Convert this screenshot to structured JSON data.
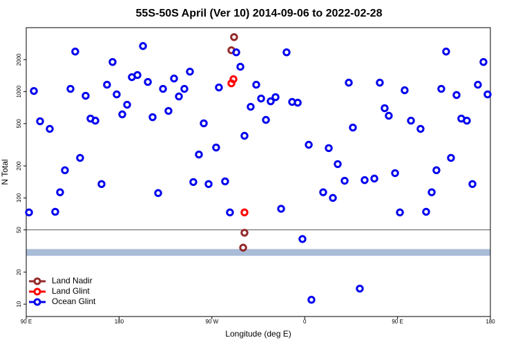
{
  "chart_data": {
    "type": "scatter",
    "title": "55S-50S April (Ver 10)   2014-09-06 to 2022-02-28",
    "xlabel": "Longitude (deg E)",
    "ylabel": "N Total",
    "log_y": true,
    "xlim": [
      90,
      540
    ],
    "xticks": [
      {
        "value": 90,
        "label": "90 E"
      },
      {
        "value": 180,
        "label": "180"
      },
      {
        "value": 270,
        "label": "90 W"
      },
      {
        "value": 360,
        "label": "0"
      },
      {
        "value": 450,
        "label": "90 E"
      },
      {
        "value": 540,
        "label": "180"
      }
    ],
    "ylim": [
      7.65,
      4000
    ],
    "yticks": [
      10,
      20,
      50,
      100,
      200,
      500,
      1000,
      2000
    ],
    "hline": 50,
    "band": [
      28.5,
      33
    ],
    "band_color": "#a9bcd8",
    "legend": "lower left",
    "series": [
      {
        "name": "Land Nadir",
        "color": "#932a2a",
        "x": [
          291.5,
          288.9,
          301.6,
          300.3
        ],
        "values": [
          3258,
          2453,
          47,
          34
        ]
      },
      {
        "name": "Land Glint",
        "color": "#ff0000",
        "x": [
          288.9,
          290.9,
          301.6
        ],
        "values": [
          1197,
          1309,
          73
        ]
      },
      {
        "name": "Ocean Glint",
        "color": "#0000ee",
        "x": [
          92.7,
          97.4,
          103.4,
          112.8,
          118.1,
          122.8,
          127.5,
          132.9,
          137.5,
          142.2,
          147.6,
          152.3,
          157,
          163,
          168.3,
          173.7,
          177.7,
          183.1,
          187.8,
          192.4,
          197.8,
          203.2,
          207.9,
          212.5,
          217.9,
          222.6,
          227.9,
          233.3,
          238,
          243.3,
          248.7,
          252,
          257.4,
          262.1,
          266.8,
          274.1,
          276.8,
          282.8,
          287.5,
          293.6,
          297.6,
          301.6,
          307.6,
          313,
          317.7,
          322.4,
          327,
          331.7,
          337.1,
          342.4,
          347.8,
          353.2,
          357.8,
          363.9,
          366.5,
          377.9,
          383.3,
          387.3,
          392,
          398.7,
          402.7,
          406.7,
          413.4,
          418.1,
          427.5,
          432.8,
          437.5,
          441.5,
          447.6,
          452.3,
          456.9,
          463,
          472.3,
          477.7,
          483.1,
          487.7,
          492.4,
          497.1,
          501.8,
          507.2,
          511.8,
          517.2,
          522.6,
          527.9,
          533.3,
          537.3
        ],
        "values": [
          73,
          1014,
          526,
          446,
          74,
          113,
          182,
          1062,
          2382,
          238,
          914,
          558,
          533,
          135,
          1161,
          1901,
          942,
          611,
          753,
          1368,
          1432,
          2685,
          1233,
          575,
          111,
          1062,
          658,
          1328,
          901,
          1062,
          1542,
          141,
          256,
          503,
          135,
          298,
          1094,
          143,
          73,
          2344,
          1714,
          384,
          720,
          1161,
          861,
          542,
          811,
          887,
          79,
          2344,
          800,
          787,
          41,
          316,
          11,
          113,
          294,
          100,
          208,
          145,
          1214,
          459,
          14,
          147,
          152,
          1214,
          698,
          593,
          171,
          73,
          1030,
          533,
          446,
          74,
          113,
          182,
          1062,
          2382,
          238,
          929,
          558,
          533,
          135,
          1161,
          1901,
          942
        ]
      }
    ]
  }
}
